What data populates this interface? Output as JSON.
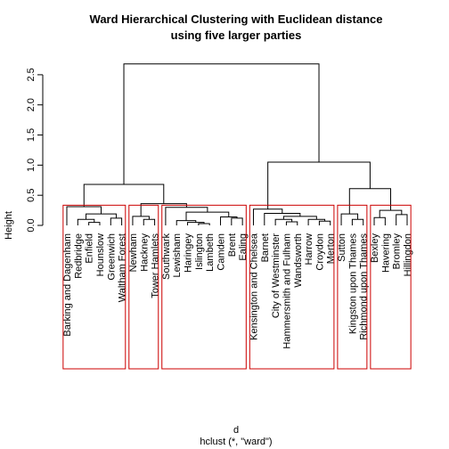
{
  "chart_data": {
    "type": "dendrogram",
    "title": [
      "Ward Hierarchical Clustering with Euclidean distance",
      "using five larger parties"
    ],
    "x_label": "d",
    "subtitle": "hclust (*, \"ward\")",
    "y_label": "Height",
    "ylim": [
      0,
      2.75
    ],
    "yticks": [
      {
        "value": 0,
        "label": "0.0"
      },
      0.5,
      {
        "value": 1,
        "label": "1.0"
      },
      1.5,
      {
        "value": 2,
        "label": "2.0"
      },
      2.5
    ],
    "color": "#000000",
    "rect_clusters": 6,
    "rect_color": "#cc0000",
    "tree": {
      "height": 2.68,
      "children": [
        {
          "height": 0.68,
          "children": [
            {
              "height": 0.31,
              "children": [
                {
                  "label": "Barking and Dagenham"
                },
                {
                  "height": 0.19,
                  "children": [
                    {
                      "height": 0.1,
                      "children": [
                        {
                          "label": "Redbridge"
                        },
                        {
                          "height": 0.05,
                          "children": [
                            {
                              "label": "Enfield"
                            },
                            {
                              "label": "Hounslow"
                            }
                          ]
                        }
                      ]
                    },
                    {
                      "height": 0.12,
                      "children": [
                        {
                          "label": "Greenwich"
                        },
                        {
                          "label": "Waltham Forest"
                        }
                      ]
                    }
                  ]
                }
              ]
            },
            {
              "height": 0.36,
              "children": [
                {
                  "height": 0.15,
                  "children": [
                    {
                      "label": "Newham"
                    },
                    {
                      "height": 0.1,
                      "children": [
                        {
                          "label": "Hackney"
                        },
                        {
                          "label": "Tower Hamlets"
                        }
                      ]
                    }
                  ]
                },
                {
                  "height": 0.3,
                  "children": [
                    {
                      "label": "Southwark"
                    },
                    {
                      "height": 0.22,
                      "children": [
                        {
                          "height": 0.08,
                          "children": [
                            {
                              "label": "Lewisham"
                            },
                            {
                              "height": 0.05,
                              "children": [
                                {
                                  "label": "Haringey"
                                },
                                {
                                  "height": 0.03,
                                  "children": [
                                    {
                                      "label": "Islington"
                                    },
                                    {
                                      "label": "Lambeth"
                                    }
                                  ]
                                }
                              ]
                            }
                          ]
                        },
                        {
                          "height": 0.14,
                          "children": [
                            {
                              "label": "Camden"
                            },
                            {
                              "height": 0.12,
                              "children": [
                                {
                                  "label": "Brent"
                                },
                                {
                                  "label": "Ealing"
                                }
                              ]
                            }
                          ]
                        }
                      ]
                    }
                  ]
                }
              ]
            }
          ]
        },
        {
          "height": 1.05,
          "children": [
            {
              "height": 0.27,
              "children": [
                {
                  "label": "Kensington and Chelsea"
                },
                {
                  "height": 0.2,
                  "children": [
                    {
                      "label": "Barnet"
                    },
                    {
                      "height": 0.15,
                      "children": [
                        {
                          "height": 0.1,
                          "children": [
                            {
                              "label": "City of Westminster"
                            },
                            {
                              "height": 0.06,
                              "children": [
                                {
                                  "label": "Hammersmith and Fulham"
                                },
                                {
                                  "label": "Wandsworth"
                                }
                              ]
                            }
                          ]
                        },
                        {
                          "height": 0.1,
                          "children": [
                            {
                              "label": "Harrow"
                            },
                            {
                              "height": 0.07,
                              "children": [
                                {
                                  "label": "Croydon"
                                },
                                {
                                  "label": "Merton"
                                }
                              ]
                            }
                          ]
                        }
                      ]
                    }
                  ]
                }
              ]
            },
            {
              "height": 0.61,
              "children": [
                {
                  "height": 0.19,
                  "children": [
                    {
                      "label": "Sutton"
                    },
                    {
                      "height": 0.1,
                      "children": [
                        {
                          "label": "Kingston upon Thames"
                        },
                        {
                          "label": "Richmond upon Thames"
                        }
                      ]
                    }
                  ]
                },
                {
                  "height": 0.25,
                  "children": [
                    {
                      "height": 0.13,
                      "children": [
                        {
                          "label": "Bexley"
                        },
                        {
                          "label": "Havering"
                        }
                      ]
                    },
                    {
                      "height": 0.18,
                      "children": [
                        {
                          "label": "Bromley"
                        },
                        {
                          "label": "Hillingdon"
                        }
                      ]
                    }
                  ]
                }
              ]
            }
          ]
        }
      ]
    }
  }
}
